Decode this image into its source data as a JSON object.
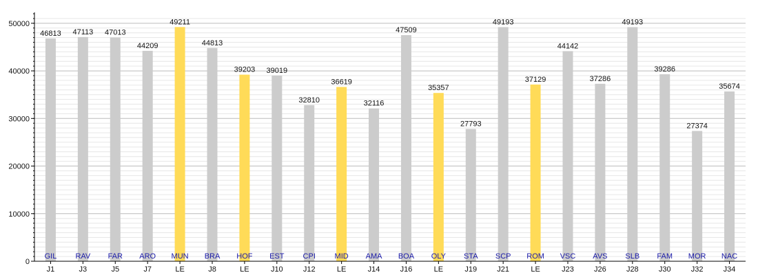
{
  "chart_data": {
    "type": "bar",
    "categories": [
      "J1",
      "J3",
      "J5",
      "J7",
      "LE",
      "J8",
      "LE",
      "J10",
      "J12",
      "LE",
      "J14",
      "J16",
      "LE",
      "J19",
      "J21",
      "LE",
      "J23",
      "J26",
      "J28",
      "J30",
      "J32",
      "J34"
    ],
    "teams": [
      "GIL",
      "RAV",
      "FAR",
      "ARO",
      "MUN",
      "BRA",
      "HOF",
      "EST",
      "CPI",
      "MID",
      "AMA",
      "BOA",
      "OLY",
      "STA",
      "SCP",
      "ROM",
      "VSC",
      "AVS",
      "SLB",
      "FAM",
      "MOR",
      "NAC"
    ],
    "values": [
      46813,
      47113,
      47013,
      44209,
      49211,
      44813,
      39203,
      39019,
      32810,
      36619,
      32116,
      47509,
      35357,
      27793,
      49193,
      37129,
      44142,
      37286,
      49193,
      39286,
      27374,
      35674
    ],
    "highlight": [
      false,
      false,
      false,
      false,
      true,
      false,
      true,
      false,
      false,
      true,
      false,
      false,
      true,
      false,
      false,
      true,
      false,
      false,
      false,
      false,
      false,
      false
    ],
    "ylim": [
      0,
      52000
    ],
    "yticks": [
      0,
      10000,
      20000,
      30000,
      40000,
      50000
    ],
    "title": "",
    "xlabel": "",
    "ylabel": "",
    "grid": true,
    "colors": {
      "default_bar": "#cccccc",
      "highlight_bar": "#ffdb58",
      "team_label": "#1a1aa8",
      "major_grid": "#bbbbbb",
      "minor_grid": "#e6e6e6",
      "axis": "#000000"
    }
  }
}
